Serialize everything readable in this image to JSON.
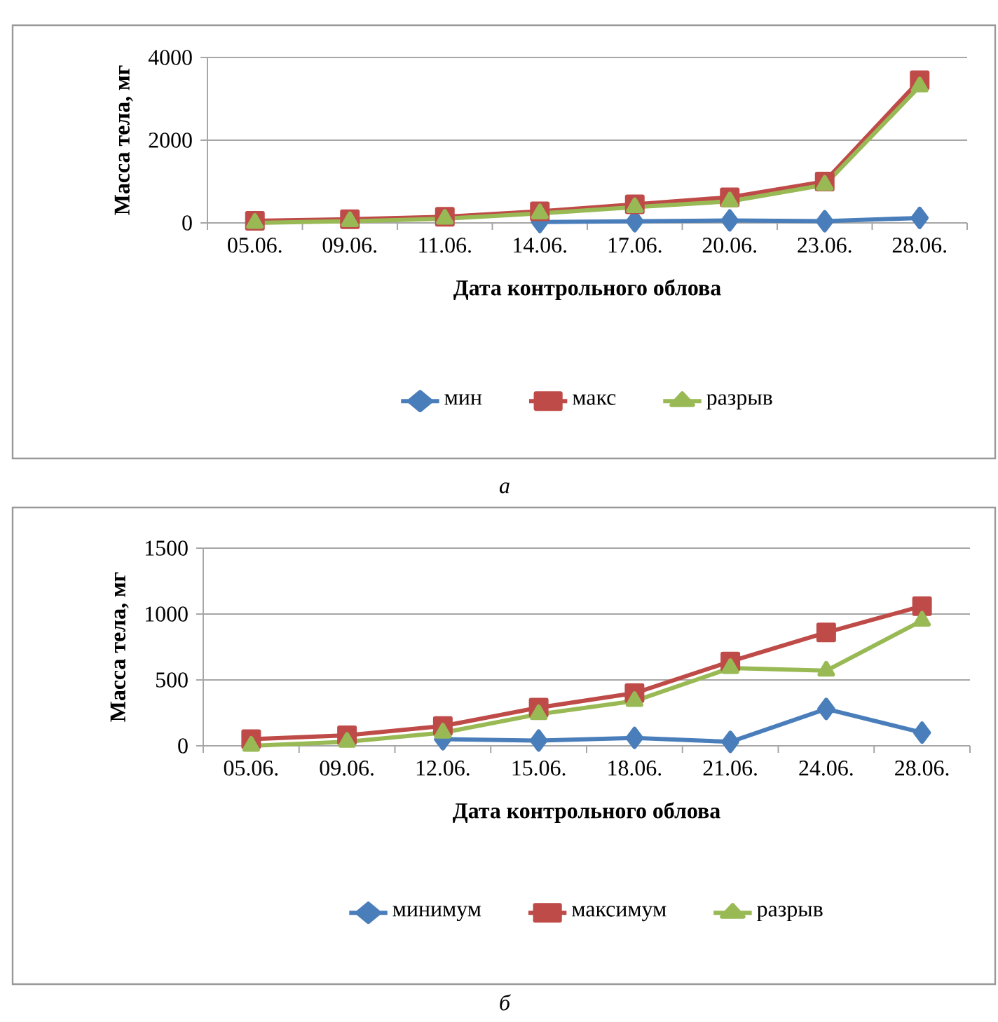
{
  "chart_data": [
    {
      "type": "line",
      "xlabel": "Дата  контрольного облова",
      "ylabel": "Масса тела, мг",
      "annotations": [
        "а"
      ],
      "categories": [
        "05.06.",
        "09.06.",
        "11.06.",
        "14.06.",
        "17.06.",
        "20.06.",
        "23.06.",
        "28.06."
      ],
      "ylim": [
        0,
        4000
      ],
      "yticks": [
        0,
        2000,
        4000
      ],
      "grid": "y",
      "legend": "bottom",
      "series": [
        {
          "name": "мин",
          "color": "#4a7ebb",
          "marker": "diamond",
          "values": [
            null,
            null,
            null,
            20,
            40,
            60,
            40,
            120
          ]
        },
        {
          "name": "макс",
          "color": "#be4b48",
          "marker": "square",
          "values": [
            50,
            90,
            150,
            280,
            450,
            620,
            1000,
            3450
          ]
        },
        {
          "name": "разрыв",
          "color": "#98b954",
          "marker": "triangle",
          "values": [
            0,
            40,
            100,
            230,
            380,
            520,
            920,
            3300
          ]
        }
      ]
    },
    {
      "type": "line",
      "xlabel": "Дата контрольного облова",
      "ylabel": "Масса тела, мг",
      "annotations": [
        "б"
      ],
      "categories": [
        "05.06.",
        "09.06.",
        "12.06.",
        "15.06.",
        "18.06.",
        "21.06.",
        "24.06.",
        "28.06."
      ],
      "ylim": [
        0,
        1500
      ],
      "yticks": [
        0,
        500,
        1000,
        1500
      ],
      "grid": "y",
      "legend": "bottom",
      "series": [
        {
          "name": "минимум",
          "color": "#4a7ebb",
          "marker": "diamond",
          "values": [
            null,
            null,
            50,
            40,
            60,
            30,
            280,
            100
          ]
        },
        {
          "name": "максимум",
          "color": "#be4b48",
          "marker": "square",
          "values": [
            50,
            80,
            150,
            290,
            400,
            640,
            860,
            1060
          ]
        },
        {
          "name": "разрыв",
          "color": "#98b954",
          "marker": "triangle",
          "values": [
            0,
            30,
            100,
            240,
            340,
            590,
            570,
            950
          ]
        }
      ]
    }
  ]
}
